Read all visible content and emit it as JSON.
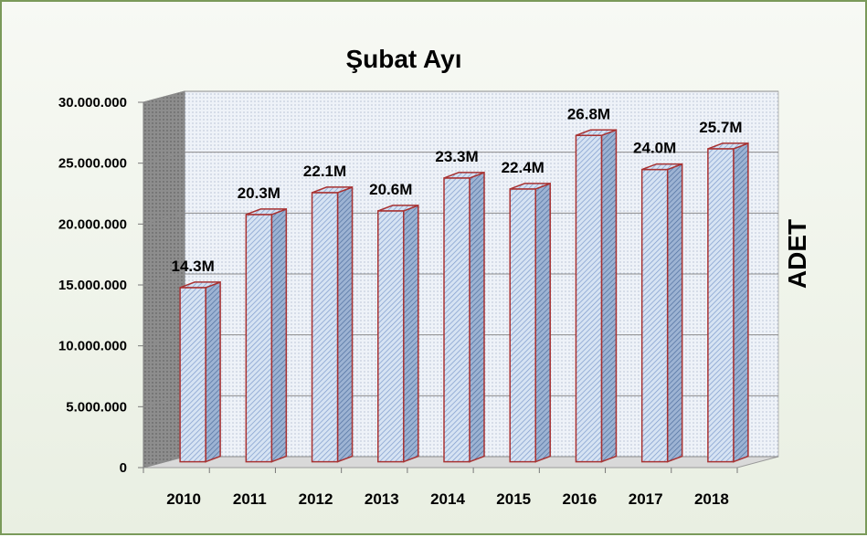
{
  "chart_data": {
    "type": "bar",
    "title": "Şubat Ayı",
    "ylabel": "ADET",
    "xlabel": "",
    "categories": [
      "2010",
      "2011",
      "2012",
      "2013",
      "2014",
      "2015",
      "2016",
      "2017",
      "2018"
    ],
    "values": [
      14300000,
      20300000,
      22100000,
      20600000,
      23300000,
      22400000,
      26800000,
      24000000,
      25700000
    ],
    "data_labels": [
      "14.3M",
      "20.3M",
      "22.1M",
      "20.6M",
      "23.3M",
      "22.4M",
      "26.8M",
      "24.0M",
      "25.7M"
    ],
    "ylim": [
      0,
      30000000
    ],
    "yticks": [
      0,
      5000000,
      10000000,
      15000000,
      20000000,
      25000000,
      30000000
    ],
    "ytick_labels": [
      "0",
      "5.000.000",
      "10.000.000",
      "15.000.000",
      "20.000.000",
      "25.000.000",
      "30.000.000"
    ],
    "grid": true,
    "style": "3d-column",
    "colors": {
      "bar_front": "#c9daf0",
      "bar_side": "#8aa6c8",
      "bar_top": "#dbe6f4",
      "bar_outline": "#a83232",
      "frame_border": "#7a9a5a",
      "back_wall": "#e8eef8",
      "side_wall": "#9a9a9a"
    }
  }
}
